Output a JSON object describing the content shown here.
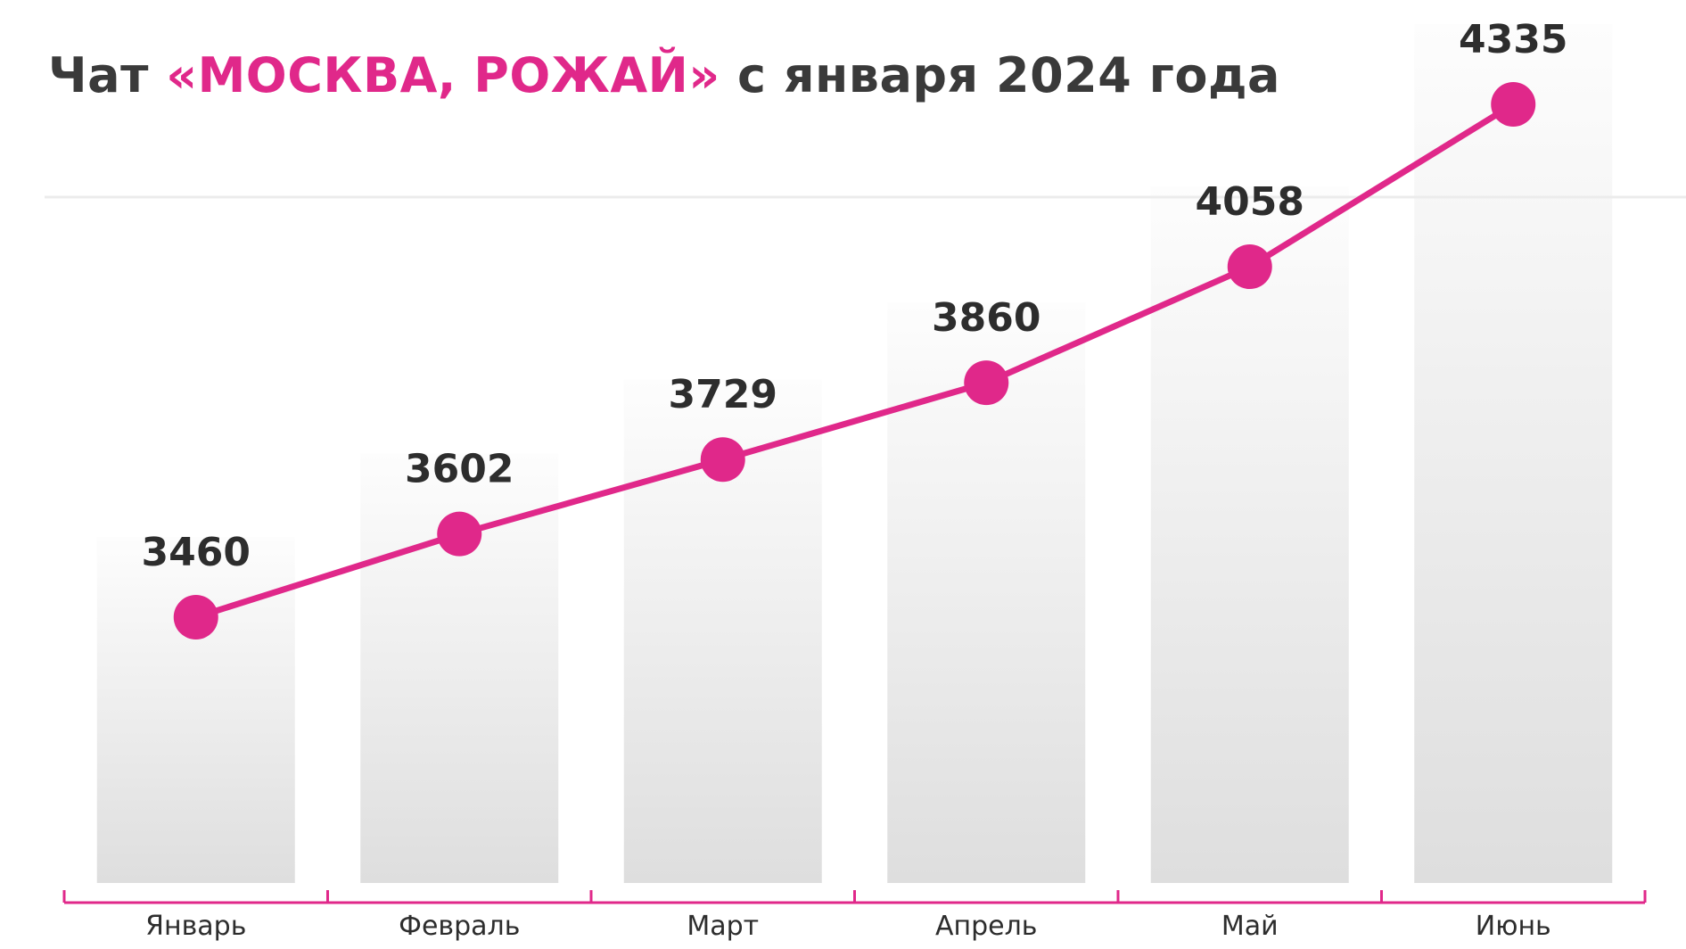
{
  "title": {
    "prefix": "Чат ",
    "highlight": "«МОСКВА, РОЖАЙ»",
    "suffix": " с января 2024 года"
  },
  "colors": {
    "accent": "#e0288a",
    "title_text": "#3a3a3a",
    "label_text": "#2d2d2d",
    "bar_top": "#fdfdfd",
    "bar_bottom": "#dedede",
    "gridline": "#ececec"
  },
  "chart_data": {
    "type": "line",
    "title": "Чат «МОСКВА, РОЖАЙ» с января 2024 года",
    "xlabel": "",
    "ylabel": "",
    "categories": [
      "Январь",
      "Февраль",
      "Март",
      "Апрель",
      "Май",
      "Июнь"
    ],
    "series": [
      {
        "values": [
          3460,
          3602,
          3729,
          3860,
          4058,
          4335
        ]
      }
    ],
    "data_labels": [
      "3460",
      "3602",
      "3729",
      "3860",
      "4058",
      "4335"
    ],
    "background_bars": true,
    "grid": false,
    "legend": "none"
  }
}
